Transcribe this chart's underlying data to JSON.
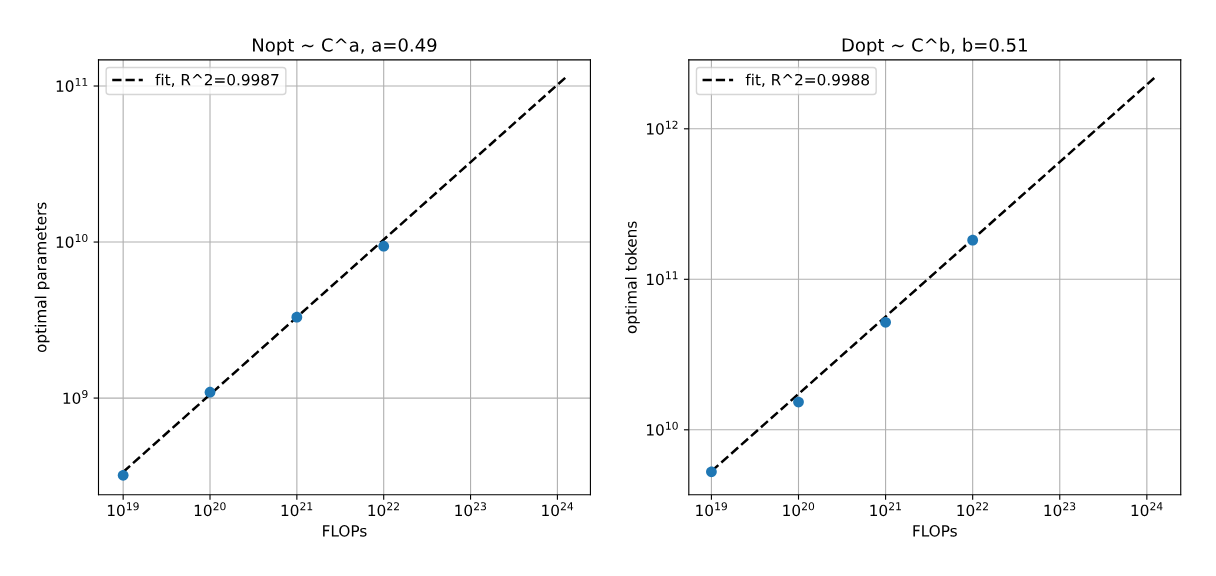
{
  "chart_data": [
    {
      "type": "scatter",
      "title": "Nopt ~ C^a, a=0.49",
      "xlabel": "FLOPs",
      "ylabel": "optimal parameters",
      "log": "xy",
      "grid": true,
      "legend": "top left",
      "marker": "circle",
      "xlim": [
        5.2e+18,
        2.4e+24
      ],
      "ylim": [
        240000000.0,
        147000000000.0
      ],
      "xticks": [
        {
          "value": 1e+19,
          "label": "10$^{19}$"
        },
        {
          "value": 1e+20,
          "label": "10$^{20}$"
        },
        {
          "value": 1e+21,
          "label": "10$^{21}$"
        },
        {
          "value": 1e+22,
          "label": "10$^{22}$"
        },
        {
          "value": 1e+23,
          "label": "10$^{23}$"
        },
        {
          "value": 1e+24,
          "label": "10$^{24}$"
        }
      ],
      "yticks": [
        {
          "value": 1000000000.0,
          "label": "10$^{9}$"
        },
        {
          "value": 10000000000.0,
          "label": "10$^{10}$"
        },
        {
          "value": 100000000000.0,
          "label": "10$^{11}$"
        }
      ],
      "series": [
        {
          "color": "#1f77b4",
          "x": [
            1e+19,
            1e+20,
            1e+21,
            1e+22
          ],
          "values": [
            320000000.0,
            1090000000.0,
            3300000000.0,
            9400000000.0
          ]
        },
        {
          "type": "line",
          "name": "fit, R^2=0.9987",
          "color": "#000000",
          "line_style": "dashed",
          "marker": "none",
          "x": [
            1e+19,
            1.3e+24
          ],
          "values": [
            336000000.0,
            116000000000.0
          ]
        }
      ]
    },
    {
      "type": "scatter",
      "title": "Dopt ~ C^b, b=0.51",
      "xlabel": "FLOPs",
      "ylabel": "optimal tokens",
      "log": "xy",
      "grid": true,
      "legend": "top left",
      "marker": "circle",
      "xlim": [
        5.5e+18,
        2.45e+24
      ],
      "ylim": [
        3700000000.0,
        2870000000000.0
      ],
      "xticks": [
        {
          "value": 1e+19,
          "label": "10$^{19}$"
        },
        {
          "value": 1e+20,
          "label": "10$^{20}$"
        },
        {
          "value": 1e+21,
          "label": "10$^{21}$"
        },
        {
          "value": 1e+22,
          "label": "10$^{22}$"
        },
        {
          "value": 1e+23,
          "label": "10$^{23}$"
        },
        {
          "value": 1e+24,
          "label": "10$^{24}$"
        }
      ],
      "yticks": [
        {
          "value": 10000000000.0,
          "label": "10$^{10}$"
        },
        {
          "value": 100000000000.0,
          "label": "10$^{11}$"
        },
        {
          "value": 1000000000000.0,
          "label": "10$^{12}$"
        }
      ],
      "series": [
        {
          "color": "#1f77b4",
          "x": [
            1e+19,
            1e+20,
            1e+21,
            1e+22
          ],
          "values": [
            5260000000.0,
            15300000000.0,
            51800000000.0,
            182000000000.0
          ]
        },
        {
          "type": "line",
          "name": "fit, R^2=0.9988",
          "color": "#000000",
          "line_style": "dashed",
          "marker": "none",
          "x": [
            1e+19,
            1.3e+24
          ],
          "values": [
            5300000000.0,
            2250000000000.0
          ]
        }
      ]
    }
  ]
}
